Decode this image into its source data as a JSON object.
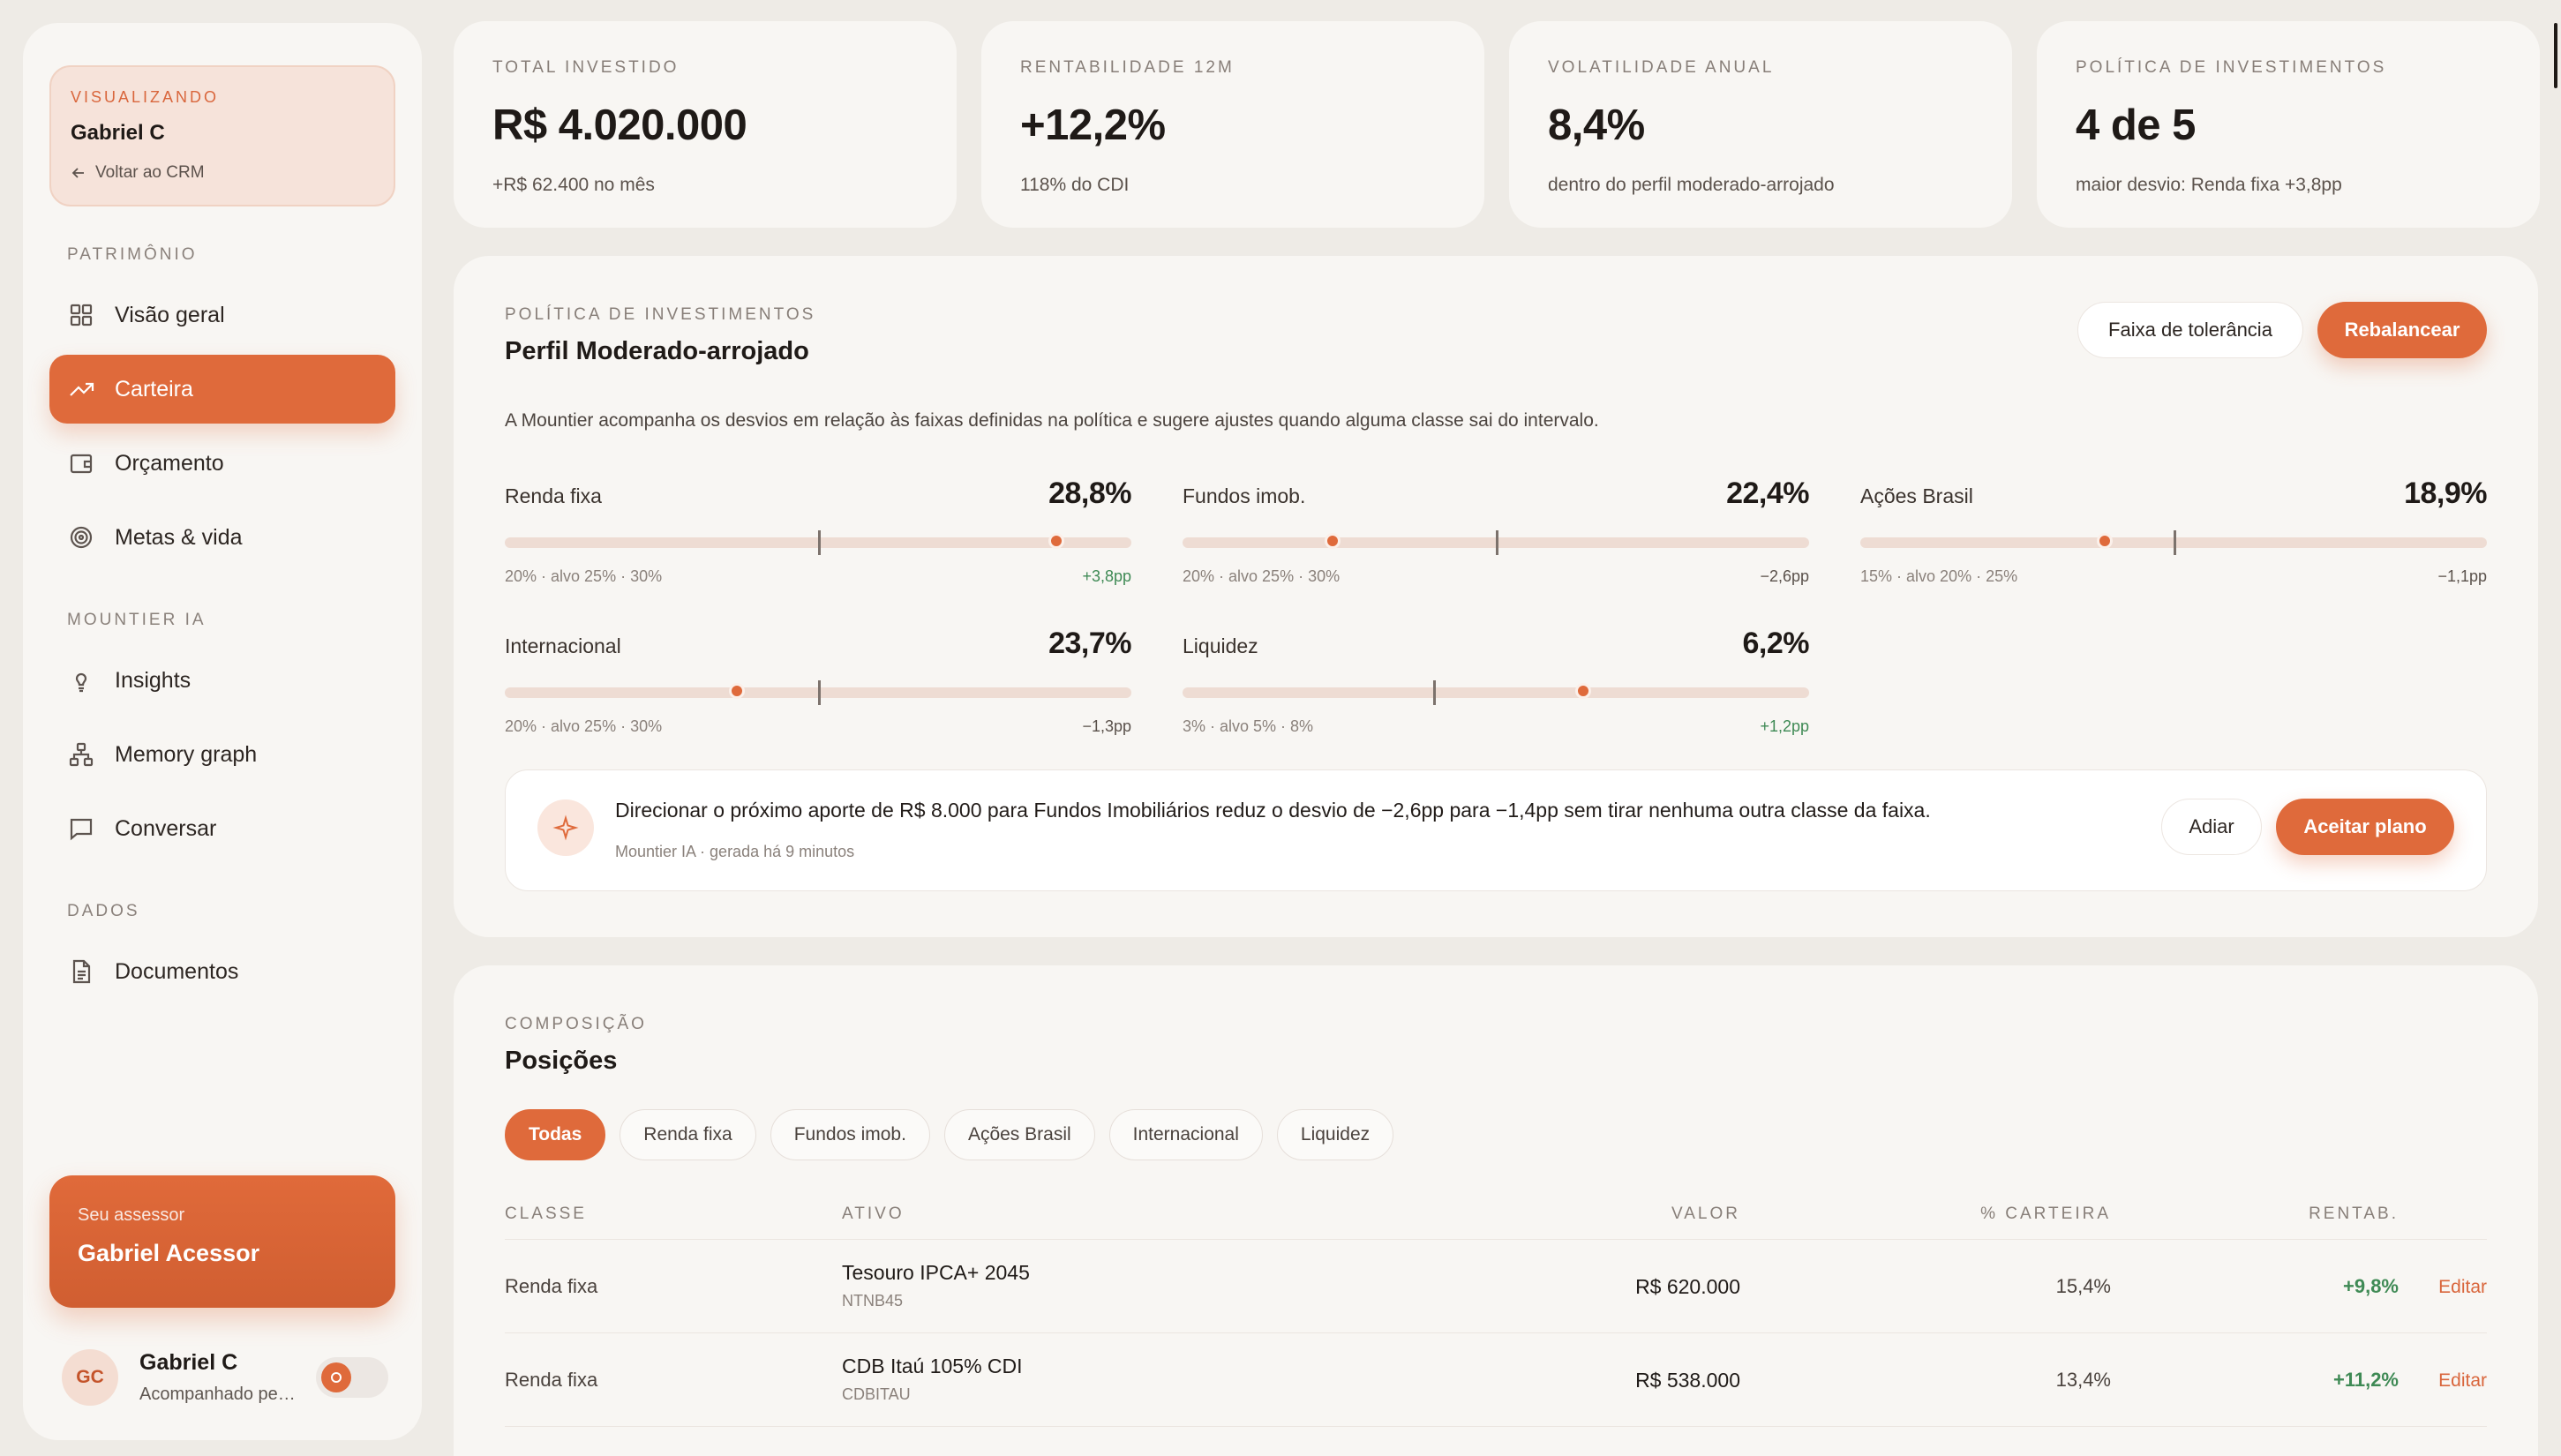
{
  "sidebar": {
    "viewing_label": "VISUALIZANDO",
    "viewing_name": "Gabriel C",
    "back_label": "Voltar ao CRM",
    "sections": {
      "patrimonio": "PATRIMÔNIO",
      "ia": "MOUNTIER IA",
      "dados": "DADOS"
    },
    "items": {
      "visao_geral": "Visão geral",
      "carteira": "Carteira",
      "orcamento": "Orçamento",
      "metas": "Metas & vida",
      "insights": "Insights",
      "memory": "Memory graph",
      "conversar": "Conversar",
      "documentos": "Documentos"
    },
    "advisor": {
      "title": "Seu assessor",
      "name": "Gabriel Acessor"
    },
    "user": {
      "initials": "GC",
      "name": "Gabriel C",
      "status": "Acompanhado pelo assessor"
    }
  },
  "kpis": [
    {
      "label": "TOTAL INVESTIDO",
      "value": "R$ 4.020.000",
      "sub": "+R$ 62.400 no mês"
    },
    {
      "label": "RENTABILIDADE 12M",
      "value": "+12,2%",
      "sub": "118% do CDI"
    },
    {
      "label": "VOLATILIDADE ANUAL",
      "value": "8,4%",
      "sub": "dentro do perfil moderado-arrojado"
    },
    {
      "label": "POLÍTICA DE INVESTIMENTOS",
      "value": "4 de 5",
      "sub": "maior desvio: Renda fixa +3,8pp"
    }
  ],
  "policy": {
    "label": "POLÍTICA DE INVESTIMENTOS",
    "title": "Perfil Moderado-arrojado",
    "tolerance_button": "Faixa de tolerância",
    "rebalance_button": "Rebalancear",
    "description": "A Mountier acompanha os desvios em relação às faixas definidas na política e sugere ajustes quando alguma classe sai do intervalo.",
    "allocations": [
      {
        "name": "Renda fixa",
        "pct": "28,8%",
        "range": "20% · alvo 25% · 30%",
        "deviation": "+3,8pp",
        "current": 0.88,
        "target": 0.5
      },
      {
        "name": "Fundos imob.",
        "pct": "22,4%",
        "range": "20% · alvo 25% · 30%",
        "deviation": "−2,6pp",
        "current": 0.24,
        "target": 0.5
      },
      {
        "name": "Ações Brasil",
        "pct": "18,9%",
        "range": "15% · alvo 20% · 25%",
        "deviation": "−1,1pp",
        "current": 0.39,
        "target": 0.5
      },
      {
        "name": "Internacional",
        "pct": "23,7%",
        "range": "20% · alvo 25% · 30%",
        "deviation": "−1,3pp",
        "current": 0.37,
        "target": 0.5
      },
      {
        "name": "Liquidez",
        "pct": "6,2%",
        "range": "3% · alvo 5% · 8%",
        "deviation": "+1,2pp",
        "current": 0.64,
        "target": 0.4
      }
    ],
    "suggestion": {
      "text": "Direcionar o próximo aporte de R$ 8.000 para Fundos Imobiliários reduz o desvio de −2,6pp para −1,4pp sem tirar nenhuma outra classe da faixa.",
      "meta": "Mountier IA · gerada há 9 minutos",
      "postpone": "Adiar",
      "accept": "Aceitar plano"
    }
  },
  "positions": {
    "label": "COMPOSIÇÃO",
    "title": "Posições",
    "filters": [
      "Todas",
      "Renda fixa",
      "Fundos imob.",
      "Ações Brasil",
      "Internacional",
      "Liquidez"
    ],
    "columns": {
      "classe": "CLASSE",
      "ativo": "ATIVO",
      "valor": "VALOR",
      "carteira": "% CARTEIRA",
      "rentab": "RENTAB."
    },
    "edit_label": "Editar",
    "rows": [
      {
        "classe": "Renda fixa",
        "ativo": "Tesouro IPCA+ 2045",
        "codigo": "NTNB45",
        "valor": "R$ 620.000",
        "pct": "15,4%",
        "rentab": "+9,8%"
      },
      {
        "classe": "Renda fixa",
        "ativo": "CDB Itaú 105% CDI",
        "codigo": "CDBITAU",
        "valor": "R$ 538.000",
        "pct": "13,4%",
        "rentab": "+11,2%"
      }
    ]
  },
  "colors": {
    "accent": "#df6a3b",
    "positive": "#3f8a55",
    "background": "#eeebe6",
    "card": "#f8f6f3"
  }
}
